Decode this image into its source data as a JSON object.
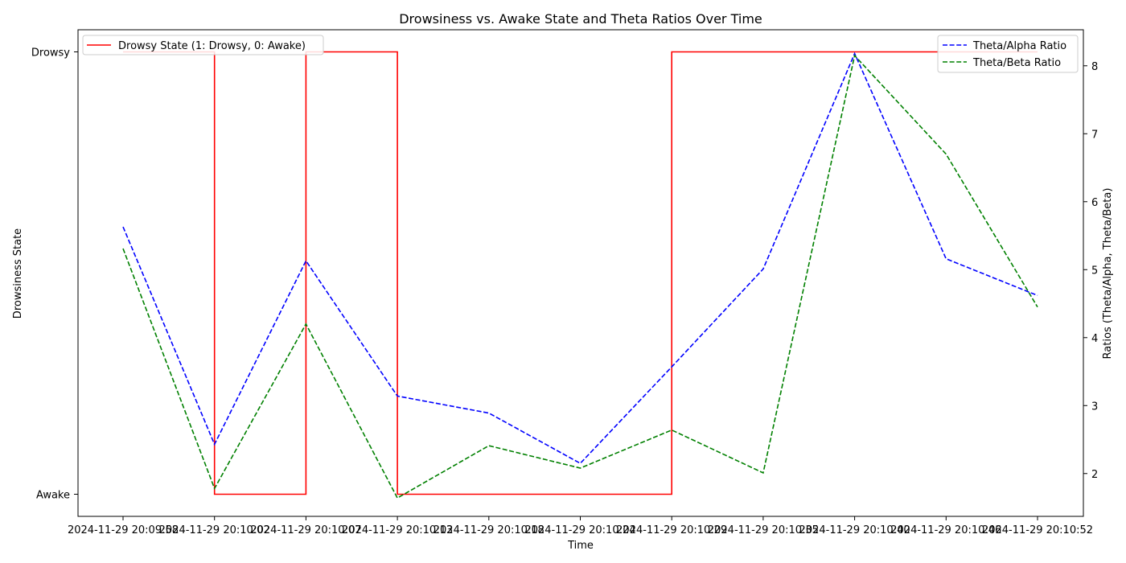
{
  "chart_data": {
    "type": "line",
    "title": "Drowsiness vs. Awake State and Theta Ratios Over Time",
    "xlabel": "Time",
    "ylabel_left": "Drowsiness State",
    "ylabel_right": "Ratios (Theta/Alpha, Theta/Beta)",
    "x": [
      "2024-11-29 20:09:58",
      "2024-11-29 20:10:02",
      "2024-11-29 20:10:07",
      "2024-11-29 20:10:13",
      "2024-11-29 20:10:18",
      "2024-11-29 20:10:24",
      "2024-11-29 20:10:29",
      "2024-11-29 20:10:35",
      "2024-11-29 20:10:40",
      "2024-11-29 20:10:46",
      "2024-11-29 20:10:52"
    ],
    "left_axis": {
      "ylim": [
        -0.05,
        1.05
      ],
      "ticks": [
        0,
        1
      ],
      "tick_labels": [
        "Awake",
        "Drowsy"
      ]
    },
    "right_axis": {
      "ylim": [
        1.37,
        8.53
      ],
      "ticks": [
        2,
        3,
        4,
        5,
        6,
        7,
        8
      ],
      "tick_labels": [
        "2",
        "3",
        "4",
        "5",
        "6",
        "7",
        "8"
      ]
    },
    "series": [
      {
        "name": "Drowsy State (1: Drowsy, 0: Awake)",
        "axis": "left",
        "style": "step-post",
        "color": "#ff0000",
        "dash": "solid",
        "values": [
          1,
          0,
          1,
          0,
          0,
          0,
          1,
          1,
          1,
          1,
          1
        ]
      },
      {
        "name": "Theta/Alpha Ratio",
        "axis": "right",
        "color": "#0000ff",
        "dash": "dashed",
        "values": [
          5.63,
          2.43,
          5.13,
          3.14,
          2.89,
          2.15,
          3.57,
          5.01,
          8.18,
          5.16,
          4.62
        ]
      },
      {
        "name": "Theta/Beta Ratio",
        "axis": "right",
        "color": "#008000",
        "dash": "dashed",
        "values": [
          5.31,
          1.78,
          4.2,
          1.64,
          2.41,
          2.08,
          2.64,
          2.01,
          8.15,
          6.7,
          4.45
        ]
      }
    ],
    "legends": [
      {
        "placement": "upper-left",
        "entries": [
          "Drowsy State (1: Drowsy, 0: Awake)"
        ]
      },
      {
        "placement": "upper-right",
        "entries": [
          "Theta/Alpha Ratio",
          "Theta/Beta Ratio"
        ]
      }
    ],
    "grid": false
  }
}
